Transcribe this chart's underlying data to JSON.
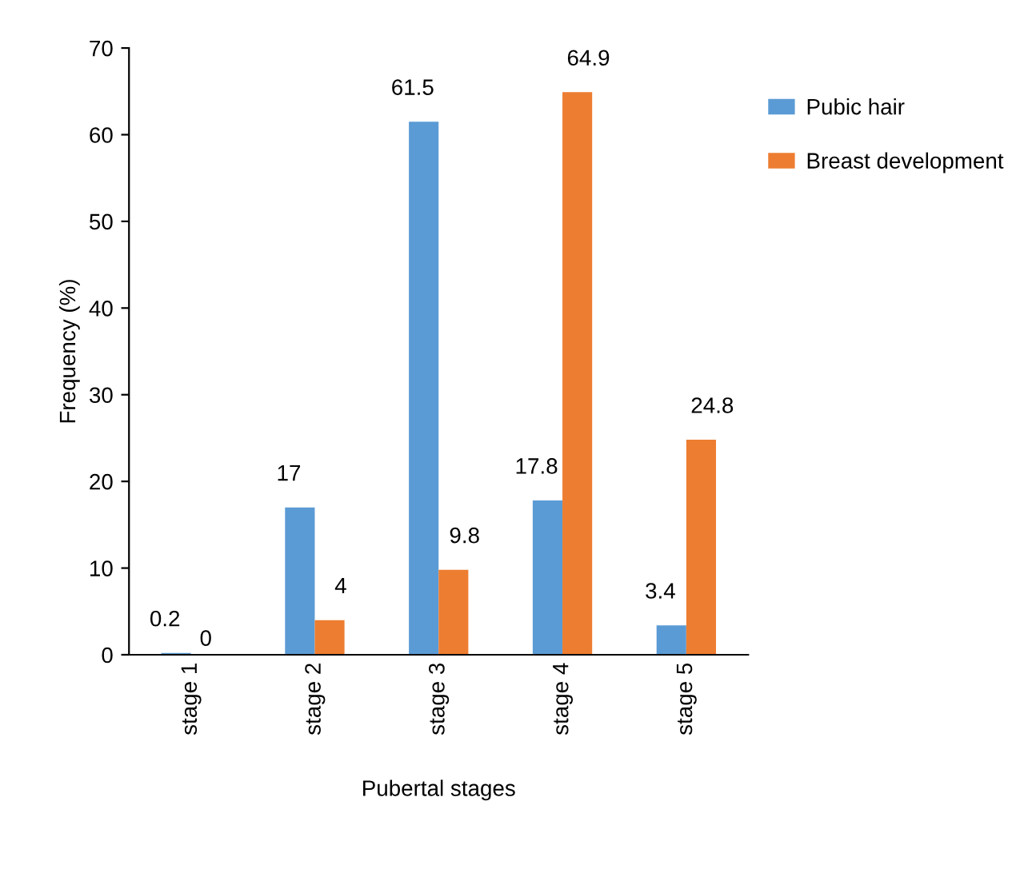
{
  "chart_data": {
    "type": "bar",
    "xlabel": "Pubertal stages",
    "ylabel": "Frequency (%)",
    "categories": [
      "stage 1",
      "stage 2",
      "stage 3",
      "stage 4",
      "stage 5"
    ],
    "series": [
      {
        "name": "Pubic hair",
        "color": "#5b9bd5",
        "values": [
          0.2,
          17,
          61.5,
          17.8,
          3.4
        ]
      },
      {
        "name": "Breast development",
        "color": "#ed7d31",
        "values": [
          0,
          4,
          9.8,
          64.9,
          24.8
        ]
      }
    ],
    "ylim": [
      0,
      70
    ],
    "yticks": [
      0,
      10,
      20,
      30,
      40,
      50,
      60,
      70
    ],
    "data_labels": true,
    "grid": false,
    "legend": "top right"
  }
}
